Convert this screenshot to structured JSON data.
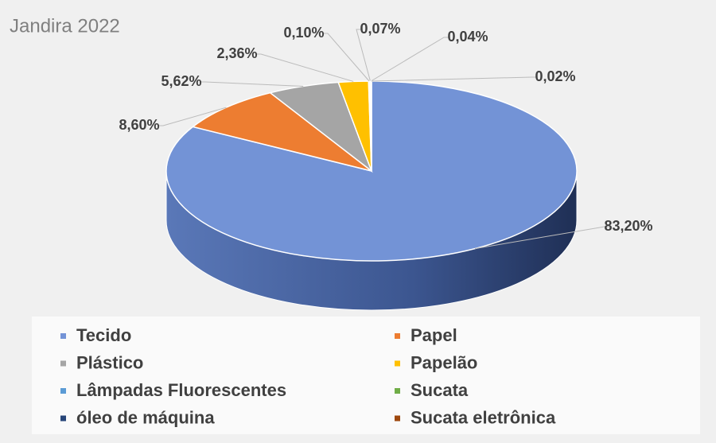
{
  "chart_data": {
    "type": "pie3d",
    "title": "Jandira 2022",
    "categories": [
      "Tecido",
      "Papel",
      "Plástico",
      "Papelão",
      "Lâmpadas Fluorescentes",
      "Sucata",
      "óleo de máquina",
      "Sucata eletrônica"
    ],
    "values": [
      83.2,
      8.6,
      5.62,
      2.36,
      0.1,
      0.07,
      0.04,
      0.02
    ],
    "value_labels": [
      "83,20%",
      "8,60%",
      "5,62%",
      "2,36%",
      "0,10%",
      "0,07%",
      "0,04%",
      "0,02%"
    ],
    "colors": [
      "#7393d6",
      "#ed7d31",
      "#a5a5a5",
      "#ffc000",
      "#5b9bd5",
      "#70ad47",
      "#264478",
      "#9e480e"
    ],
    "legend": "bottom"
  }
}
